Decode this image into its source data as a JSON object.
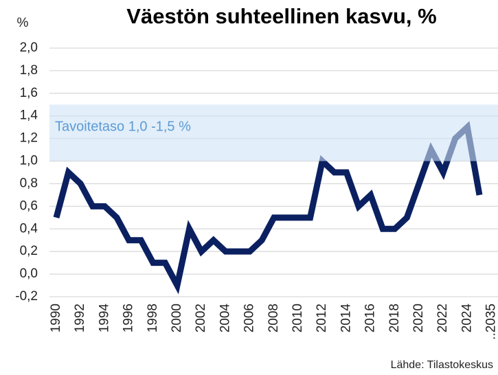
{
  "chart_data": {
    "type": "line",
    "title": "Väestön suhteellinen kasvu, %",
    "y_label": "%",
    "source": "Lähde: Tilastokeskus",
    "annotation": "Tavoitetaso 1,0 -1,5 %",
    "band": [
      1.0,
      1.5
    ],
    "band_color": "#cfe2f5",
    "categories": [
      "1990",
      null,
      "1992",
      null,
      "1994",
      null,
      "1996",
      null,
      "1998",
      null,
      "2000",
      null,
      "2002",
      null,
      "2004",
      null,
      "2006",
      null,
      "2008",
      null,
      "2010",
      null,
      "2012",
      null,
      "2014",
      null,
      "2016",
      null,
      "2018",
      null,
      "2020",
      null,
      "2022",
      null,
      "2024",
      null,
      "..2035"
    ],
    "series": [
      {
        "name": "Väestön suhteellinen kasvu",
        "color": "#0b2060",
        "values": [
          0.5,
          0.9,
          0.8,
          0.6,
          0.6,
          0.5,
          0.3,
          0.3,
          0.1,
          0.1,
          -0.1,
          0.4,
          0.2,
          0.3,
          0.2,
          0.2,
          0.2,
          0.3,
          0.5,
          0.5,
          0.5,
          0.5,
          1.0,
          0.9,
          0.9,
          0.6,
          0.7,
          0.4,
          0.4,
          0.5,
          0.8,
          1.1,
          0.9,
          1.2,
          1.3,
          0.7,
          null
        ]
      }
    ],
    "ylim": [
      -0.2,
      2.0
    ],
    "yticks": [
      {
        "value": -0.2,
        "label": "-0,2"
      },
      {
        "value": 0,
        "label": "0,0"
      },
      {
        "value": 0.2,
        "label": "0,2"
      },
      {
        "value": 0.4,
        "label": "0,4"
      },
      {
        "value": 0.6,
        "label": "0,6"
      },
      {
        "value": 0.8,
        "label": "0,8"
      },
      {
        "value": 1.0,
        "label": "1,0"
      },
      {
        "value": 1.2,
        "label": "1,2"
      },
      {
        "value": 1.4,
        "label": "1,4"
      },
      {
        "value": 1.6,
        "label": "1,6"
      },
      {
        "value": 1.8,
        "label": "1,8"
      },
      {
        "value": 2.0,
        "label": "2,0"
      }
    ],
    "grid": true
  }
}
